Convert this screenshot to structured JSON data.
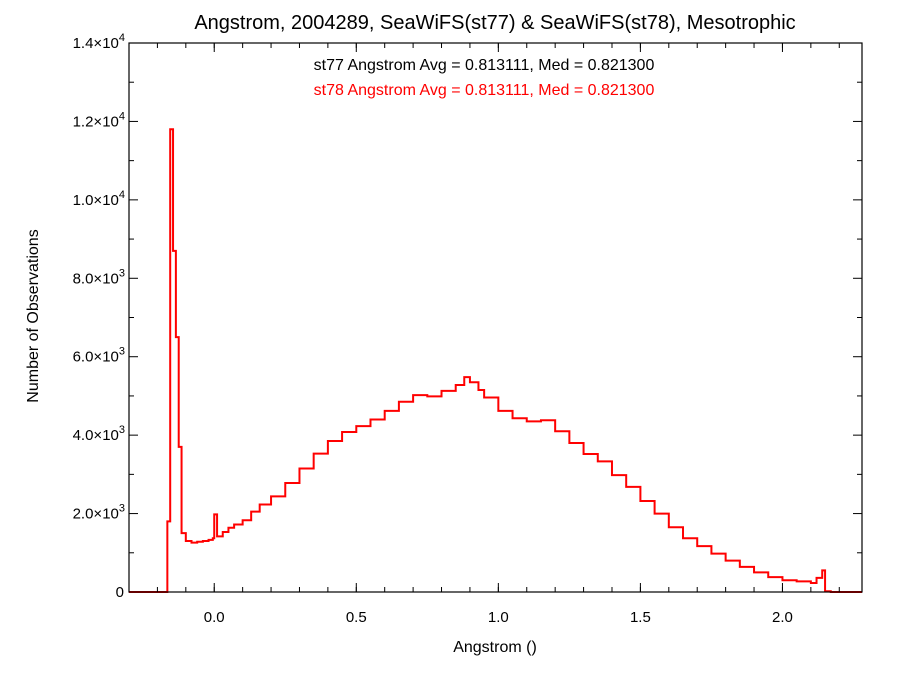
{
  "chart_data": {
    "type": "area",
    "title": "Angstrom, 2004289, SeaWiFS(st77) & SeaWiFS(st78), Mesotrophic",
    "xlabel": "Angstrom ()",
    "ylabel": "Number of Observations",
    "xlim": [
      -0.3,
      2.28
    ],
    "ylim": [
      0,
      14000
    ],
    "grid": false,
    "legend_position": "top-center",
    "x_ticks": [
      {
        "value": 0.0,
        "label": "0.0"
      },
      {
        "value": 0.5,
        "label": "0.5"
      },
      {
        "value": 1.0,
        "label": "1.0"
      },
      {
        "value": 1.5,
        "label": "1.5"
      },
      {
        "value": 2.0,
        "label": "2.0"
      }
    ],
    "y_ticks": [
      {
        "value": 0,
        "mantissa": "0",
        "exp": ""
      },
      {
        "value": 2000,
        "mantissa": "2.0×10",
        "exp": "3"
      },
      {
        "value": 4000,
        "mantissa": "4.0×10",
        "exp": "3"
      },
      {
        "value": 6000,
        "mantissa": "6.0×10",
        "exp": "3"
      },
      {
        "value": 8000,
        "mantissa": "8.0×10",
        "exp": "3"
      },
      {
        "value": 10000,
        "mantissa": "1.0×10",
        "exp": "4"
      },
      {
        "value": 12000,
        "mantissa": "1.2×10",
        "exp": "4"
      },
      {
        "value": 14000,
        "mantissa": "1.4×10",
        "exp": "4"
      }
    ],
    "annotations": [
      {
        "text": "st77 Angstrom Avg = 0.813111, Med = 0.821300",
        "color": "#000000"
      },
      {
        "text": "st78 Angstrom Avg = 0.813111, Med = 0.821300",
        "color": "#ff0000"
      }
    ],
    "series": [
      {
        "color": "#ff0000",
        "points": [
          [
            -0.3,
            0
          ],
          [
            -0.2,
            0
          ],
          [
            -0.17,
            0
          ],
          [
            -0.165,
            1800
          ],
          [
            -0.155,
            11800
          ],
          [
            -0.145,
            8700
          ],
          [
            -0.135,
            6500
          ],
          [
            -0.125,
            3700
          ],
          [
            -0.115,
            1500
          ],
          [
            -0.1,
            1300
          ],
          [
            -0.08,
            1260
          ],
          [
            -0.06,
            1280
          ],
          [
            -0.04,
            1300
          ],
          [
            -0.02,
            1330
          ],
          [
            -0.005,
            1370
          ],
          [
            0.0,
            1980
          ],
          [
            0.01,
            1420
          ],
          [
            0.03,
            1530
          ],
          [
            0.05,
            1640
          ],
          [
            0.07,
            1720
          ],
          [
            0.1,
            1830
          ],
          [
            0.13,
            2050
          ],
          [
            0.16,
            2230
          ],
          [
            0.2,
            2440
          ],
          [
            0.25,
            2780
          ],
          [
            0.3,
            3150
          ],
          [
            0.35,
            3530
          ],
          [
            0.4,
            3850
          ],
          [
            0.45,
            4080
          ],
          [
            0.5,
            4230
          ],
          [
            0.55,
            4400
          ],
          [
            0.6,
            4620
          ],
          [
            0.65,
            4850
          ],
          [
            0.7,
            5020
          ],
          [
            0.75,
            4990
          ],
          [
            0.8,
            5130
          ],
          [
            0.85,
            5280
          ],
          [
            0.88,
            5480
          ],
          [
            0.9,
            5350
          ],
          [
            0.93,
            5150
          ],
          [
            0.95,
            4960
          ],
          [
            1.0,
            4620
          ],
          [
            1.05,
            4430
          ],
          [
            1.1,
            4350
          ],
          [
            1.15,
            4380
          ],
          [
            1.2,
            4100
          ],
          [
            1.25,
            3800
          ],
          [
            1.3,
            3520
          ],
          [
            1.35,
            3330
          ],
          [
            1.4,
            2980
          ],
          [
            1.45,
            2680
          ],
          [
            1.5,
            2320
          ],
          [
            1.55,
            2000
          ],
          [
            1.6,
            1650
          ],
          [
            1.65,
            1370
          ],
          [
            1.7,
            1170
          ],
          [
            1.75,
            980
          ],
          [
            1.8,
            800
          ],
          [
            1.85,
            640
          ],
          [
            1.9,
            500
          ],
          [
            1.95,
            380
          ],
          [
            2.0,
            300
          ],
          [
            2.05,
            270
          ],
          [
            2.1,
            230
          ],
          [
            2.12,
            360
          ],
          [
            2.14,
            550
          ],
          [
            2.15,
            20
          ],
          [
            2.17,
            0
          ],
          [
            2.28,
            0
          ]
        ]
      }
    ]
  }
}
